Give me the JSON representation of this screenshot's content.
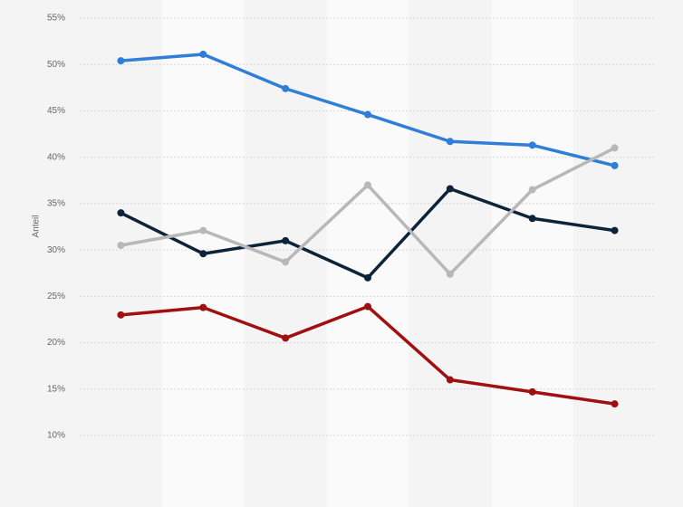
{
  "chart_data": {
    "type": "line",
    "y_label": "Anteil",
    "categories": [
      null,
      null,
      null,
      null,
      null,
      null,
      null
    ],
    "series": [
      {
        "color": "#2f7ed8",
        "values": [
          50.4,
          51.1,
          47.4,
          44.6,
          41.7,
          41.3,
          39.1
        ]
      },
      {
        "color": "#0d233a",
        "values": [
          34.0,
          29.6,
          31.0,
          27.0,
          36.6,
          33.4,
          32.1
        ]
      },
      {
        "color": "#b8b8b8",
        "values": [
          30.5,
          32.1,
          28.7,
          37.0,
          27.4,
          36.5,
          41.0
        ]
      },
      {
        "color": "#a01010",
        "values": [
          23.0,
          23.8,
          20.5,
          23.9,
          16.0,
          14.7,
          13.4
        ]
      }
    ],
    "ylim": [
      10,
      55
    ],
    "yticks": [
      {
        "value": 10,
        "label": "10%"
      },
      {
        "value": 15,
        "label": "15%"
      },
      {
        "value": 20,
        "label": "20%"
      },
      {
        "value": 25,
        "label": "25%"
      },
      {
        "value": 30,
        "label": "30%"
      },
      {
        "value": 35,
        "label": "35%"
      },
      {
        "value": 40,
        "label": "40%"
      },
      {
        "value": 45,
        "label": "45%"
      },
      {
        "value": 50,
        "label": "50%"
      },
      {
        "value": 55,
        "label": "55%"
      }
    ],
    "grid": true
  }
}
